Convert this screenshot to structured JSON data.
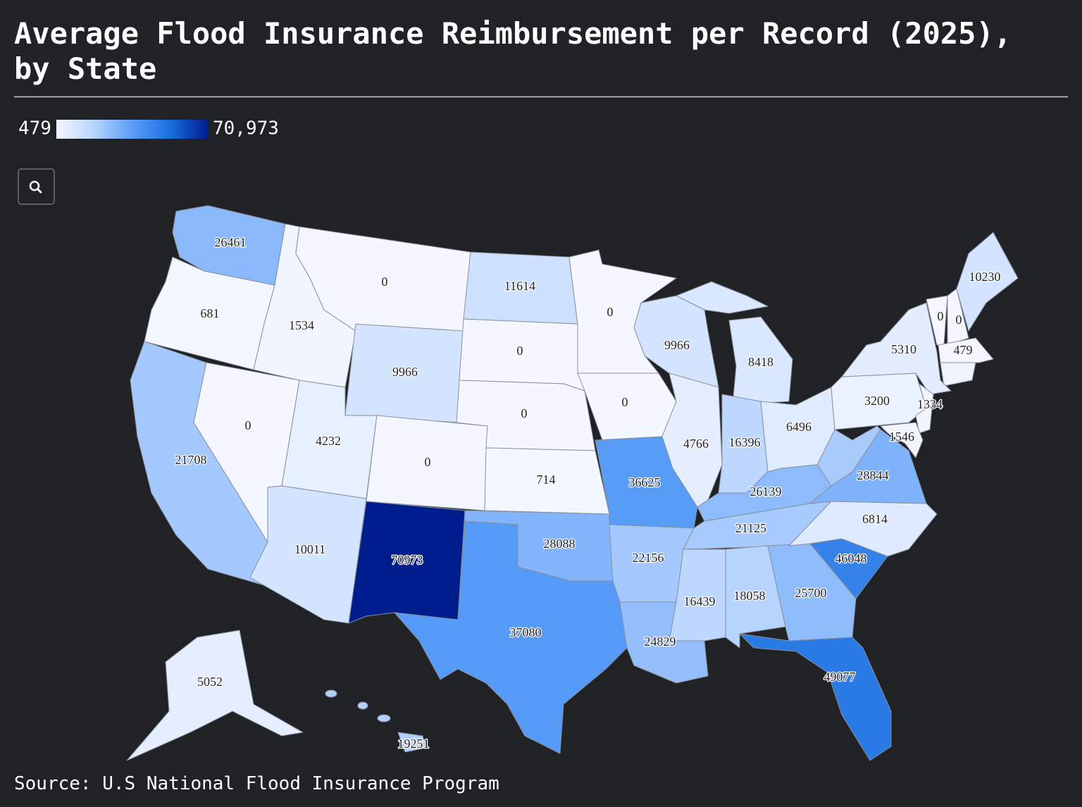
{
  "chart_data": {
    "type": "choropleth",
    "title": "Average Flood Insurance Reimbursement per Record (2025),",
    "title_line2": "by State",
    "legend": {
      "min": 479,
      "max": {
        "value": 70973,
        "label": "70,973"
      },
      "colors": [
        "#f4f7ff",
        "#b7d4ff",
        "#5a9ef8",
        "#1a6fe0",
        "#001d8e"
      ]
    },
    "values": [
      26461,
      681,
      21708,
      0,
      1534,
      0,
      9966,
      4232,
      0,
      10011,
      70973,
      11614,
      0,
      0,
      714,
      28088,
      37080,
      0,
      0,
      36625,
      22156,
      24829,
      9966,
      4766,
      8418,
      16396,
      6496,
      26139,
      21125,
      16439,
      18058,
      25700,
      49077,
      46048,
      6814,
      28844,
      3200,
      5310,
      1334,
      1546,
      0,
      0,
      479,
      10230,
      5052,
      19251
    ],
    "source": "Source: U.S National Flood Insurance Program"
  }
}
